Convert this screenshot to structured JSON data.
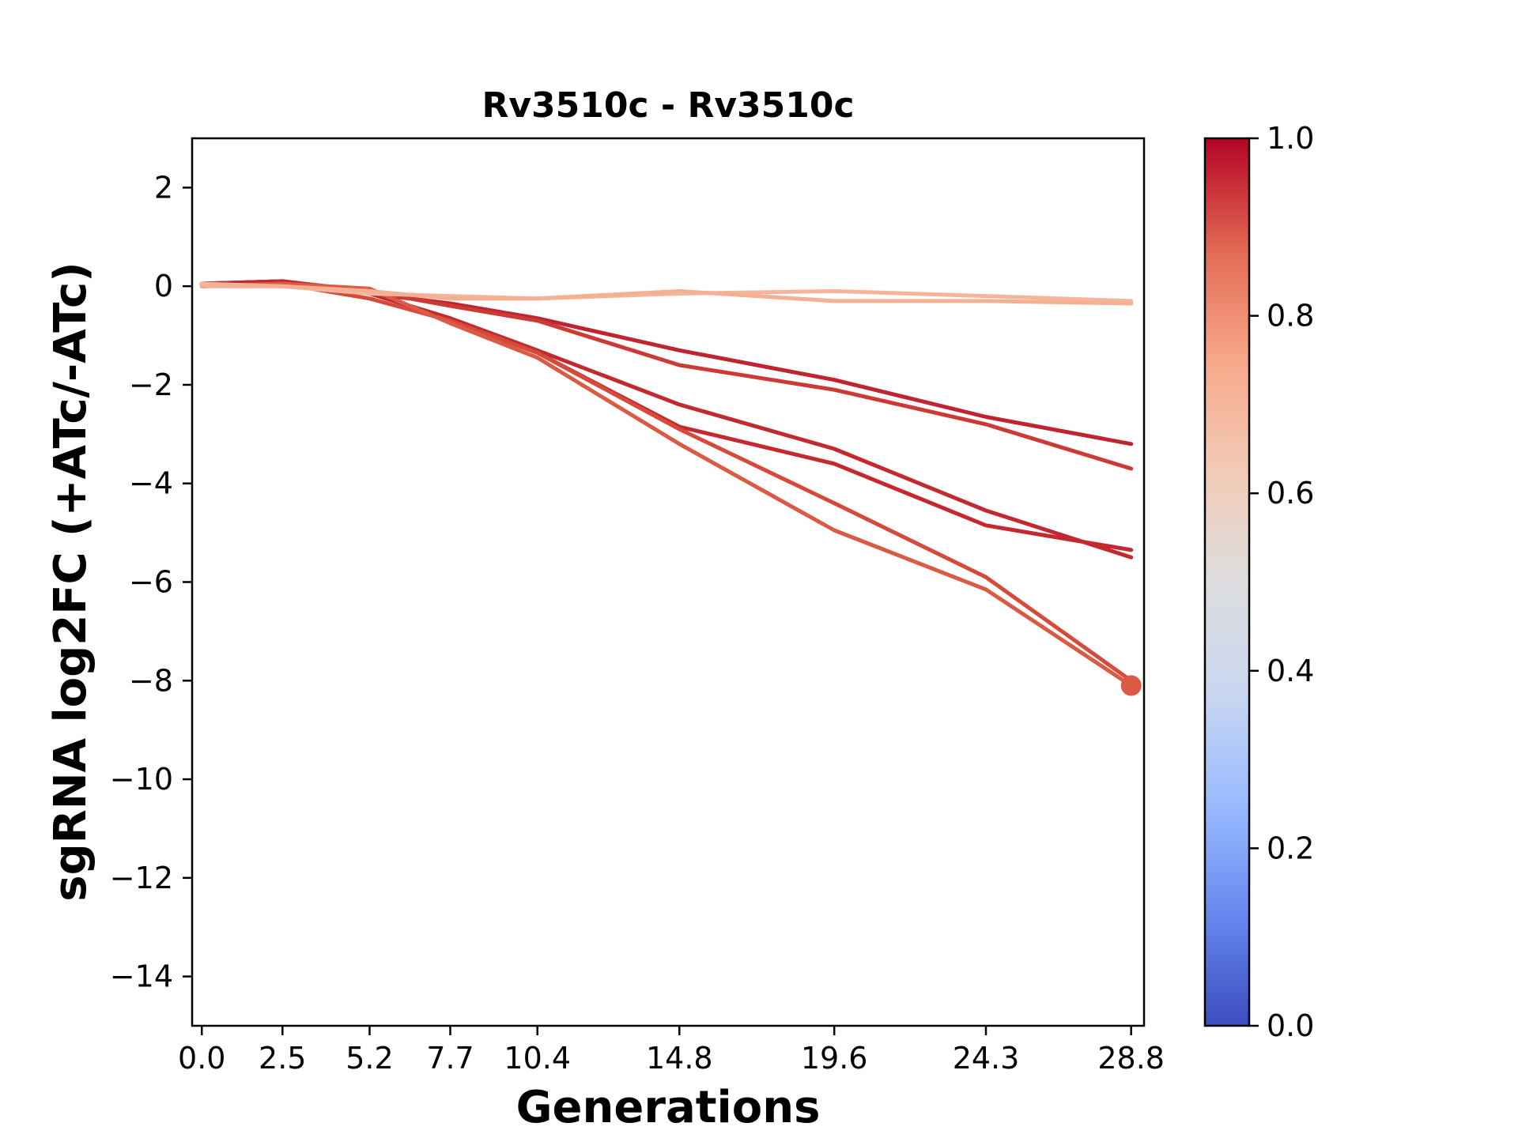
{
  "chart_data": {
    "type": "line",
    "title": "Rv3510c - Rv3510c",
    "xlabel": "Generations",
    "ylabel": "sgRNA log2FC (+ATc/-ATc)",
    "xlim": [
      -0.3,
      29.2
    ],
    "ylim": [
      -15,
      3
    ],
    "x_ticks": [
      0.0,
      2.5,
      5.2,
      7.7,
      10.4,
      14.8,
      19.6,
      24.3,
      28.8
    ],
    "x_tick_labels": [
      "0.0",
      "2.5",
      "5.2",
      "7.7",
      "10.4",
      "14.8",
      "19.6",
      "24.3",
      "28.8"
    ],
    "y_ticks": [
      2,
      0,
      -2,
      -4,
      -6,
      -8,
      -10,
      -12,
      -14
    ],
    "y_tick_labels": [
      "2",
      "0",
      "−2",
      "−4",
      "−6",
      "−8",
      "−10",
      "−12",
      "−14"
    ],
    "grid": false,
    "colormap": "coolwarm",
    "colorbar": {
      "range": [
        0.0,
        1.0
      ],
      "ticks": [
        0.0,
        0.2,
        0.4,
        0.6,
        0.8,
        1.0
      ],
      "tick_labels": [
        "0.0",
        "0.2",
        "0.4",
        "0.6",
        "0.8",
        "1.0"
      ],
      "gradient_colors": [
        "#3b4cc0",
        "#6788ee",
        "#9abbff",
        "#c9d7f0",
        "#dddddd",
        "#f2cbb7",
        "#f7a889",
        "#e26952",
        "#b40426"
      ]
    },
    "x": [
      0.0,
      2.5,
      5.2,
      7.7,
      10.4,
      14.8,
      19.6,
      24.3,
      28.8
    ],
    "series": [
      {
        "values": [
          0.05,
          0.1,
          -0.15,
          -0.35,
          -0.65,
          -1.3,
          -1.9,
          -2.65,
          -3.2
        ],
        "color": "#c0242e",
        "highlight": false
      },
      {
        "values": [
          0.0,
          0.05,
          -0.1,
          -0.4,
          -0.7,
          -1.6,
          -2.1,
          -2.8,
          -3.7
        ],
        "color": "#cd3a35",
        "highlight": false
      },
      {
        "values": [
          0.05,
          0.1,
          -0.15,
          -0.65,
          -1.3,
          -2.4,
          -3.3,
          -4.55,
          -5.5
        ],
        "color": "#c22a30",
        "highlight": false
      },
      {
        "values": [
          0.05,
          0.1,
          -0.1,
          -0.7,
          -1.35,
          -2.85,
          -3.6,
          -4.85,
          -5.35
        ],
        "color": "#c5282f",
        "highlight": false
      },
      {
        "values": [
          0.0,
          0.05,
          -0.25,
          -0.7,
          -1.35,
          -2.9,
          -4.4,
          -5.9,
          -8.0
        ],
        "color": "#d64a3c",
        "highlight": false
      },
      {
        "values": [
          0.0,
          0.05,
          -0.05,
          -0.75,
          -1.45,
          -3.2,
          -4.95,
          -6.15,
          -8.1
        ],
        "color": "#da5a43",
        "highlight": true
      },
      {
        "values": [
          0.05,
          0.0,
          -0.15,
          -0.2,
          -0.25,
          -0.15,
          -0.1,
          -0.2,
          -0.3
        ],
        "color": "#f6b59a",
        "highlight": false
      },
      {
        "values": [
          0.0,
          0.0,
          -0.1,
          -0.25,
          -0.25,
          -0.1,
          -0.3,
          -0.3,
          -0.35
        ],
        "color": "#f4b093",
        "highlight": false
      }
    ]
  }
}
